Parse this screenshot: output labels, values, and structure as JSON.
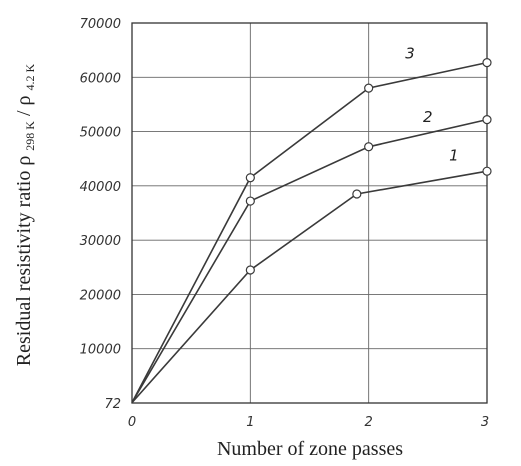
{
  "chart_data": {
    "type": "line",
    "title": "",
    "xlabel": "Number of zone passes",
    "ylabel": "Residual resistivity ratio ρ 298 K / ρ 4.2 K",
    "ylabel_parts": {
      "main": "Residual resistivity ratio ρ",
      "sub1": "298 K",
      "slash": " / ρ",
      "sub2": "4.2 K"
    },
    "xlim": [
      0,
      3
    ],
    "ylim": [
      0,
      70000
    ],
    "x_ticks": [
      "0",
      "1",
      "2",
      "3"
    ],
    "y_ticks": [
      {
        "value": 0,
        "label": "72"
      },
      {
        "value": 10000,
        "label": "10000"
      },
      {
        "value": 20000,
        "label": "20000"
      },
      {
        "value": 30000,
        "label": "30000"
      },
      {
        "value": 40000,
        "label": "40000"
      },
      {
        "value": 50000,
        "label": "50000"
      },
      {
        "value": 60000,
        "label": "60000"
      },
      {
        "value": 70000,
        "label": "70000"
      }
    ],
    "grid": true,
    "series": [
      {
        "label": "1",
        "x": [
          0,
          1,
          1.9,
          3
        ],
        "y": [
          72,
          24500,
          38500,
          42700
        ],
        "markers": [
          false,
          true,
          true,
          true
        ],
        "label_at": {
          "x": 2.72,
          "y": 44700
        }
      },
      {
        "label": "2",
        "x": [
          0,
          1,
          2,
          3
        ],
        "y": [
          72,
          37200,
          47200,
          52200
        ],
        "markers": [
          false,
          true,
          true,
          true
        ],
        "label_at": {
          "x": 2.5,
          "y": 51800
        }
      },
      {
        "label": "3",
        "x": [
          0,
          1,
          2,
          3
        ],
        "y": [
          72,
          41500,
          58000,
          62700
        ],
        "markers": [
          false,
          true,
          true,
          true
        ],
        "label_at": {
          "x": 2.35,
          "y": 63500
        }
      }
    ]
  }
}
